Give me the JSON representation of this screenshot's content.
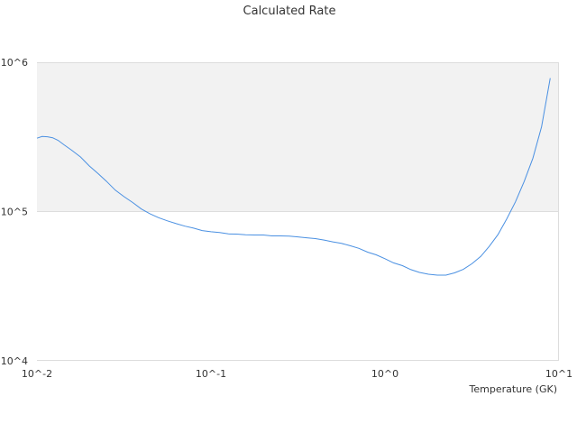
{
  "chart_data": {
    "type": "line",
    "title": "Calculated Rate",
    "xlabel": "Temperature (GK)",
    "ylabel": "",
    "x_scale": "log",
    "y_scale": "log",
    "xlim": [
      0.01,
      10
    ],
    "ylim": [
      10000,
      1000000
    ],
    "x_ticks": [
      "10^-2",
      "10^-1",
      "10^0",
      "10^1"
    ],
    "y_ticks": [
      "10^4",
      "10^5",
      "10^6"
    ],
    "grid": false,
    "legend": "none",
    "series_color": "#4a90e2",
    "band_color": "#f2f2f2",
    "series": [
      {
        "x": [
          0.01,
          0.0107,
          0.0115,
          0.0123,
          0.0132,
          0.0143,
          0.0158,
          0.0178,
          0.02,
          0.0224,
          0.025,
          0.0282,
          0.0316,
          0.0355,
          0.0398,
          0.0447,
          0.05,
          0.0562,
          0.0631,
          0.0708,
          0.0794,
          0.0891,
          0.1,
          0.112,
          0.126,
          0.141,
          0.158,
          0.178,
          0.2,
          0.224,
          0.251,
          0.282,
          0.316,
          0.355,
          0.398,
          0.447,
          0.501,
          0.562,
          0.631,
          0.708,
          0.794,
          0.891,
          1.0,
          1.12,
          1.26,
          1.41,
          1.58,
          1.78,
          2.0,
          2.24,
          2.51,
          2.82,
          3.16,
          3.55,
          3.98,
          4.47,
          5.01,
          5.62,
          6.31,
          7.08,
          7.94,
          8.91
        ],
        "y": [
          310000,
          318000,
          317000,
          312000,
          300000,
          280000,
          258000,
          232000,
          202000,
          180000,
          160000,
          139000,
          126000,
          115000,
          104000,
          96500,
          91000,
          86700,
          83000,
          79800,
          77400,
          74600,
          73200,
          72300,
          70800,
          70600,
          69800,
          69600,
          69600,
          68700,
          68700,
          68400,
          67600,
          66700,
          65900,
          64400,
          62700,
          61200,
          59000,
          56700,
          53500,
          51300,
          48300,
          45300,
          43400,
          40800,
          39100,
          38000,
          37500,
          37500,
          38800,
          41000,
          44700,
          50000,
          58600,
          70300,
          89400,
          116000,
          159000,
          228000,
          370000,
          783000
        ]
      }
    ]
  }
}
